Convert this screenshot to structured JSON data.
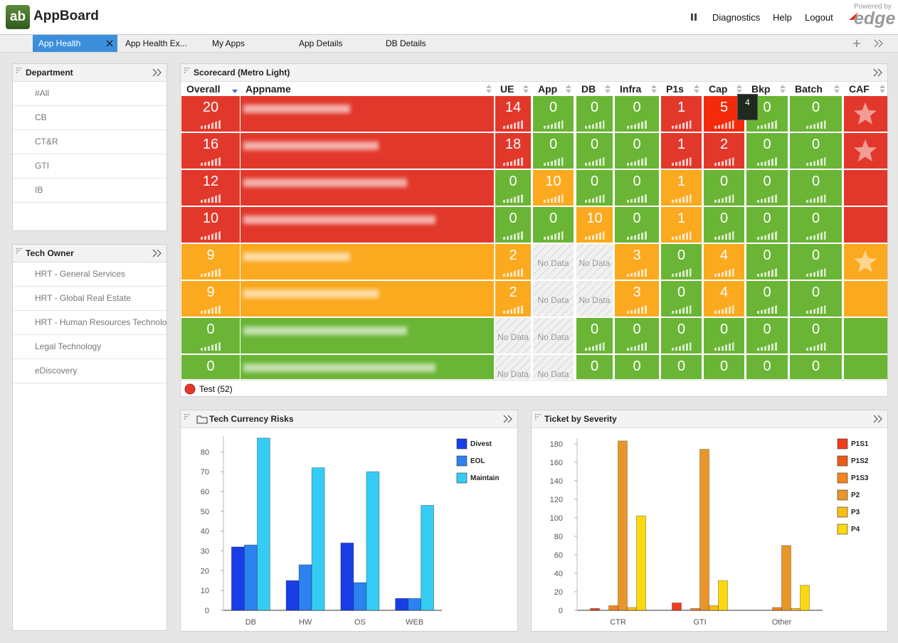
{
  "header": {
    "logo": "ab",
    "title": "AppBoard",
    "menu": [
      "Diagnostics",
      "Help",
      "Logout"
    ],
    "powered_by": "Powered by",
    "brand": "edge"
  },
  "tabs": [
    "App Health",
    "App Health Ex...",
    "My Apps",
    "App Details",
    "DB Details"
  ],
  "department": {
    "title": "Department",
    "items": [
      "#All",
      "CB",
      "CT&R",
      "GTI",
      "IB"
    ]
  },
  "tech_owner": {
    "title": "Tech Owner",
    "items": [
      "HRT - General Services",
      "HRT - Global Real Estate",
      "HRT - Human Resources Technolo",
      "Legal Technology",
      "eDiscovery"
    ]
  },
  "scorecard": {
    "title": "Scorecard (Metro Light)",
    "columns": [
      "Overall",
      "Appname",
      "UE",
      "App",
      "DB",
      "Infra",
      "P1s",
      "Cap",
      "Bkp",
      "Batch",
      "CAF"
    ],
    "rows": [
      {
        "overall": 20,
        "status": "red",
        "cells": [
          14,
          0,
          0,
          0,
          1,
          5,
          0,
          0
        ],
        "cell_status": [
          "red",
          "green",
          "green",
          "green",
          "red",
          "bright",
          "green",
          "green"
        ],
        "caf": "red",
        "caf_star": true
      },
      {
        "overall": 16,
        "status": "red",
        "cells": [
          18,
          0,
          0,
          0,
          1,
          2,
          0,
          0
        ],
        "cell_status": [
          "red",
          "green",
          "green",
          "green",
          "red",
          "red",
          "green",
          "green"
        ],
        "caf": "red",
        "caf_star": true
      },
      {
        "overall": 12,
        "status": "red",
        "cells": [
          0,
          10,
          0,
          0,
          1,
          0,
          0,
          0
        ],
        "cell_status": [
          "green",
          "orange",
          "green",
          "green",
          "orange",
          "green",
          "green",
          "green"
        ],
        "caf": "red",
        "caf_star": false
      },
      {
        "overall": 10,
        "status": "red",
        "cells": [
          0,
          0,
          10,
          0,
          1,
          0,
          0,
          0
        ],
        "cell_status": [
          "green",
          "green",
          "orange",
          "green",
          "orange",
          "green",
          "green",
          "green"
        ],
        "caf": "red",
        "caf_star": false
      },
      {
        "overall": 9,
        "status": "orange",
        "cells": [
          2,
          "No Data",
          "No Data",
          3,
          0,
          4,
          0,
          0
        ],
        "cell_status": [
          "orange",
          "nodata",
          "nodata",
          "orange",
          "green",
          "orange",
          "green",
          "green"
        ],
        "caf": "orange",
        "caf_star": true
      },
      {
        "overall": 9,
        "status": "orange",
        "cells": [
          2,
          "No Data",
          "No Data",
          3,
          0,
          4,
          0,
          0
        ],
        "cell_status": [
          "orange",
          "nodata",
          "nodata",
          "orange",
          "green",
          "orange",
          "green",
          "green"
        ],
        "caf": "orange",
        "caf_star": false
      },
      {
        "overall": 0,
        "status": "green",
        "cells": [
          "No Data",
          "No Data",
          0,
          0,
          0,
          0,
          0,
          0
        ],
        "cell_status": [
          "nodata",
          "nodata",
          "green",
          "green",
          "green",
          "green",
          "green",
          "green"
        ],
        "caf": "green",
        "caf_star": false
      },
      {
        "overall": 0,
        "status": "green",
        "cells": [
          "No Data",
          "No Data",
          0,
          0,
          0,
          0,
          0,
          0
        ],
        "cell_status": [
          "nodata",
          "nodata",
          "green",
          "green",
          "green",
          "green",
          "green",
          "green"
        ],
        "caf": "green",
        "caf_star": false
      }
    ],
    "tooltip": 4,
    "legend": "Test (52)"
  },
  "chart_data": [
    {
      "type": "bar",
      "title": "Tech Currency Risks",
      "categories": [
        "DB",
        "HW",
        "OS",
        "WEB"
      ],
      "series": [
        {
          "name": "Divest",
          "color": "#1a3ee6",
          "values": [
            32,
            15,
            34,
            6
          ]
        },
        {
          "name": "EOL",
          "color": "#2b82f0",
          "values": [
            33,
            23,
            14,
            6
          ]
        },
        {
          "name": "Maintain",
          "color": "#35ccf4",
          "values": [
            87,
            72,
            70,
            53
          ]
        }
      ],
      "ylim": [
        0,
        88
      ],
      "yticks": [
        0,
        10,
        20,
        30,
        40,
        50,
        60,
        70,
        80
      ],
      "legend": "right"
    },
    {
      "type": "bar",
      "title": "Ticket by Severity",
      "categories": [
        "CTR",
        "GTI",
        "Other"
      ],
      "series": [
        {
          "name": "P1S1",
          "color": "#f03c1e",
          "values": [
            2,
            8,
            0
          ]
        },
        {
          "name": "P1S2",
          "color": "#ec5a16",
          "values": [
            0,
            0,
            0
          ]
        },
        {
          "name": "P1S3",
          "color": "#f5841e",
          "values": [
            5,
            2,
            3
          ]
        },
        {
          "name": "P2",
          "color": "#e8962a",
          "values": [
            183,
            174,
            70
          ]
        },
        {
          "name": "P3",
          "color": "#fbbd14",
          "values": [
            3,
            5,
            2
          ]
        },
        {
          "name": "P4",
          "color": "#fcd80e",
          "values": [
            102,
            32,
            27
          ]
        }
      ],
      "ylim": [
        0,
        186
      ],
      "yticks": [
        0,
        20,
        40,
        60,
        80,
        100,
        120,
        140,
        160,
        180
      ],
      "legend": "right"
    }
  ]
}
